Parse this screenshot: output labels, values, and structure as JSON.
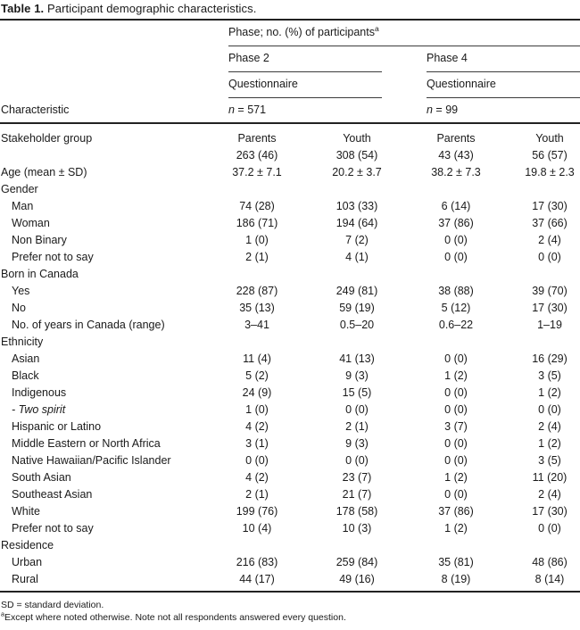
{
  "title": {
    "label": "Table 1.",
    "text": " Participant demographic characteristics."
  },
  "header": {
    "spanner": "Phase; no. (%) of participants",
    "spanner_sup": "a",
    "col_label": "Characteristic",
    "groups": [
      {
        "phase": "Phase 2",
        "sub": "Questionnaire",
        "n_italic": "n",
        "n_rest": " = 571"
      },
      {
        "phase": "Phase 4",
        "sub": "Questionnaire",
        "n_italic": "n",
        "n_rest": " = 99"
      }
    ]
  },
  "chart_data": {
    "type": "table",
    "title": "Table 1. Participant demographic characteristics.",
    "columns": [
      "Characteristic",
      "Phase 2 Questionnaire (n = 571) Parents",
      "Phase 2 Questionnaire (n = 571) Youth",
      "Phase 4 Questionnaire (n = 99) Parents",
      "Phase 4 Questionnaire (n = 99) Youth"
    ]
  },
  "rows": [
    {
      "label": "Stakeholder group",
      "indent": 0,
      "italic": false,
      "values": [
        "Parents",
        "Youth",
        "Parents",
        "Youth"
      ]
    },
    {
      "label": "",
      "indent": 0,
      "italic": false,
      "values": [
        "263 (46)",
        "308 (54)",
        "43 (43)",
        "56 (57)"
      ]
    },
    {
      "label": "Age (mean ± SD)",
      "indent": 0,
      "italic": false,
      "values": [
        "37.2 ± 7.1",
        "20.2 ± 3.7",
        "38.2 ± 7.3",
        "19.8 ± 2.3"
      ]
    },
    {
      "label": "Gender",
      "indent": 0,
      "italic": false,
      "values": [
        "",
        "",
        "",
        ""
      ]
    },
    {
      "label": "Man",
      "indent": 1,
      "italic": false,
      "values": [
        "74 (28)",
        "103 (33)",
        "6 (14)",
        "17 (30)"
      ]
    },
    {
      "label": "Woman",
      "indent": 1,
      "italic": false,
      "values": [
        "186 (71)",
        "194 (64)",
        "37 (86)",
        "37 (66)"
      ]
    },
    {
      "label": "Non Binary",
      "indent": 1,
      "italic": false,
      "values": [
        "1 (0)",
        "7 (2)",
        "0 (0)",
        "2 (4)"
      ]
    },
    {
      "label": "Prefer not to say",
      "indent": 1,
      "italic": false,
      "values": [
        "2 (1)",
        "4 (1)",
        "0 (0)",
        "0 (0)"
      ]
    },
    {
      "label": "Born in Canada",
      "indent": 0,
      "italic": false,
      "values": [
        "",
        "",
        "",
        ""
      ]
    },
    {
      "label": "Yes",
      "indent": 1,
      "italic": false,
      "values": [
        "228 (87)",
        "249 (81)",
        "38 (88)",
        "39 (70)"
      ]
    },
    {
      "label": "No",
      "indent": 1,
      "italic": false,
      "values": [
        "35 (13)",
        "59 (19)",
        "5 (12)",
        "17 (30)"
      ]
    },
    {
      "label": "No. of years in Canada (range)",
      "indent": 1,
      "italic": false,
      "values": [
        "3–41",
        "0.5–20",
        "0.6–22",
        "1–19"
      ]
    },
    {
      "label": "Ethnicity",
      "indent": 0,
      "italic": false,
      "values": [
        "",
        "",
        "",
        ""
      ]
    },
    {
      "label": "Asian",
      "indent": 1,
      "italic": false,
      "values": [
        "11 (4)",
        "41 (13)",
        "0 (0)",
        "16 (29)"
      ]
    },
    {
      "label": "Black",
      "indent": 1,
      "italic": false,
      "values": [
        "5 (2)",
        "9 (3)",
        "1 (2)",
        "3 (5)"
      ]
    },
    {
      "label": "Indigenous",
      "indent": 1,
      "italic": false,
      "values": [
        "24 (9)",
        "15 (5)",
        "0 (0)",
        "1 (2)"
      ]
    },
    {
      "label": "- Two spirit",
      "indent": 1,
      "italic": true,
      "values": [
        "1 (0)",
        "0 (0)",
        "0 (0)",
        "0 (0)"
      ]
    },
    {
      "label": "Hispanic or Latino",
      "indent": 1,
      "italic": false,
      "values": [
        "4 (2)",
        "2 (1)",
        "3 (7)",
        "2 (4)"
      ]
    },
    {
      "label": "Middle Eastern or North Africa",
      "indent": 1,
      "italic": false,
      "values": [
        "3 (1)",
        "9 (3)",
        "0 (0)",
        "1 (2)"
      ]
    },
    {
      "label": "Native Hawaiian/Pacific Islander",
      "indent": 1,
      "italic": false,
      "values": [
        "0 (0)",
        "0 (0)",
        "0 (0)",
        "3 (5)"
      ]
    },
    {
      "label": "South Asian",
      "indent": 1,
      "italic": false,
      "values": [
        "4 (2)",
        "23 (7)",
        "1 (2)",
        "11 (20)"
      ]
    },
    {
      "label": "Southeast Asian",
      "indent": 1,
      "italic": false,
      "values": [
        "2 (1)",
        "21 (7)",
        "0 (0)",
        "2 (4)"
      ]
    },
    {
      "label": "White",
      "indent": 1,
      "italic": false,
      "values": [
        "199 (76)",
        "178 (58)",
        "37 (86)",
        "17 (30)"
      ]
    },
    {
      "label": "Prefer not to say",
      "indent": 1,
      "italic": false,
      "values": [
        "10 (4)",
        "10 (3)",
        "1 (2)",
        "0 (0)"
      ]
    },
    {
      "label": "Residence",
      "indent": 0,
      "italic": false,
      "values": [
        "",
        "",
        "",
        ""
      ]
    },
    {
      "label": "Urban",
      "indent": 1,
      "italic": false,
      "values": [
        "216 (83)",
        "259 (84)",
        "35 (81)",
        "48 (86)"
      ]
    },
    {
      "label": "Rural",
      "indent": 1,
      "italic": false,
      "values": [
        "44 (17)",
        "49 (16)",
        "8 (19)",
        "8 (14)"
      ]
    }
  ],
  "footnotes": {
    "line1": "SD = standard deviation.",
    "line2_sup": "a",
    "line2": "Except where noted otherwise. Note not all respondents answered every question."
  }
}
